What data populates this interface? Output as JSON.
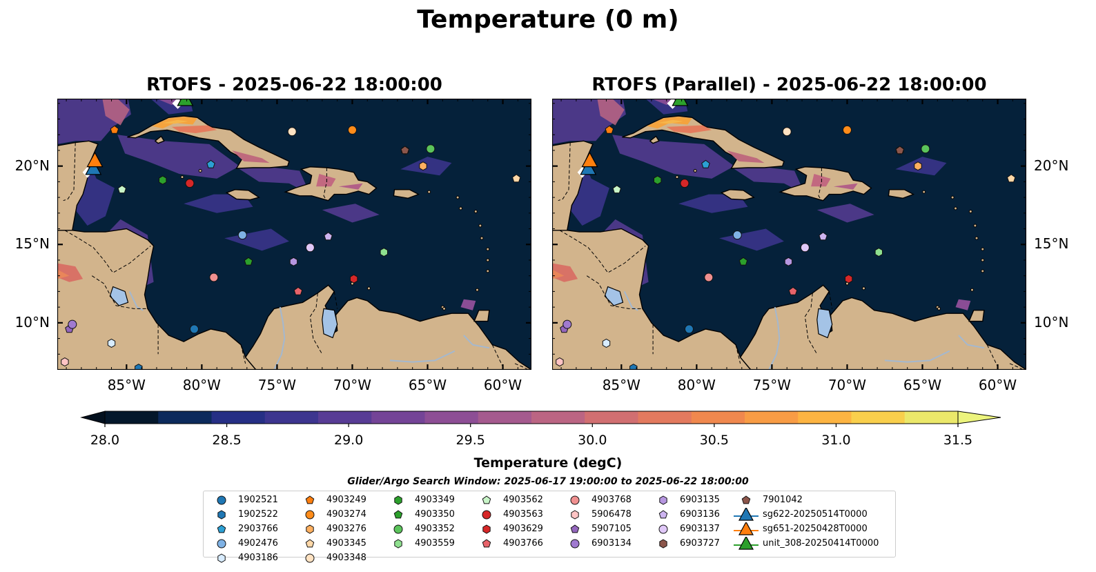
{
  "title": "Temperature (0 m)",
  "panels": [
    {
      "title": "RTOFS - 2025-06-22 18:00:00",
      "lat_labels_side": "left"
    },
    {
      "title": "RTOFS (Parallel) - 2025-06-22 18:00:00",
      "lat_labels_side": "right"
    }
  ],
  "map_extent": {
    "lon_min": -89.6,
    "lon_max": -58.1,
    "lat_min": 7.0,
    "lat_max": 24.3
  },
  "lon_ticks": [
    {
      "value": -85,
      "label": "85°W"
    },
    {
      "value": -80,
      "label": "80°W"
    },
    {
      "value": -75,
      "label": "75°W"
    },
    {
      "value": -70,
      "label": "70°W"
    },
    {
      "value": -65,
      "label": "65°W"
    },
    {
      "value": -60,
      "label": "60°W"
    }
  ],
  "lat_ticks": [
    {
      "value": 10,
      "label": "10°N"
    },
    {
      "value": 15,
      "label": "15°N"
    },
    {
      "value": 20,
      "label": "20°N"
    }
  ],
  "colorbar": {
    "label": "Temperature (degC)",
    "min": 28.0,
    "max": 31.5,
    "step": 0.25,
    "extend": "both",
    "ticks": [
      "28.0",
      "28.5",
      "29.0",
      "29.5",
      "30.0",
      "30.5",
      "31.0",
      "31.5"
    ],
    "colors": [
      "#04172b",
      "#0c2a5c",
      "#262f85",
      "#3d358f",
      "#583c95",
      "#744497",
      "#8d4e95",
      "#a55a8e",
      "#bb6583",
      "#d16f71",
      "#e37a5f",
      "#f0884e",
      "#f89c45",
      "#fdb442",
      "#f9cf4c",
      "#ebe86a"
    ],
    "under_color": "#03101e",
    "over_color": "#ecf47d"
  },
  "search_window": "Glider/Argo Search Window: 2025-06-17 19:00:00 to 2025-06-22 18:00:00",
  "colors": {
    "land": "#d2b48c",
    "ocean_cold": "#05213a",
    "water_body": "#a4c3e6",
    "river": "#a4b8cf"
  },
  "argo_floats": [
    {
      "id": "1902521",
      "marker": "circle",
      "color": "#1f77b4",
      "lon": -80.5,
      "lat": 9.6
    },
    {
      "id": "1902522",
      "marker": "hexagon",
      "color": "#1f77b4",
      "lon": -84.2,
      "lat": 7.1
    },
    {
      "id": "2903766",
      "marker": "pentagon",
      "color": "#2ca0d4",
      "lon": -79.4,
      "lat": 20.1
    },
    {
      "id": "4902476",
      "marker": "circle",
      "color": "#7fb2e5",
      "lon": -77.3,
      "lat": 15.6
    },
    {
      "id": "4903186",
      "marker": "hexagon",
      "color": "#d8ecff",
      "lon": -86.0,
      "lat": 8.7
    },
    {
      "id": "4903249",
      "marker": "pentagon",
      "color": "#ff7f0e",
      "lon": -85.8,
      "lat": 22.3
    },
    {
      "id": "4903274",
      "marker": "circle",
      "color": "#ff8c1a",
      "lon": -70.0,
      "lat": 22.3
    },
    {
      "id": "4903276",
      "marker": "hexagon",
      "color": "#ffb060",
      "lon": -65.3,
      "lat": 20.0
    },
    {
      "id": "4903345",
      "marker": "pentagon",
      "color": "#ffd8a8",
      "lon": -59.1,
      "lat": 19.2
    },
    {
      "id": "4903348",
      "marker": "circle",
      "color": "#ffe2c2",
      "lon": -74.0,
      "lat": 22.2
    },
    {
      "id": "4903349",
      "marker": "hexagon",
      "color": "#2ca02c",
      "lon": -82.6,
      "lat": 19.1
    },
    {
      "id": "4903350",
      "marker": "pentagon",
      "color": "#2ca02c",
      "lon": -76.9,
      "lat": 13.9
    },
    {
      "id": "4903352",
      "marker": "circle",
      "color": "#5bc45b",
      "lon": -64.8,
      "lat": 21.1
    },
    {
      "id": "4903559",
      "marker": "hexagon",
      "color": "#8fe08f",
      "lon": -67.9,
      "lat": 14.5
    },
    {
      "id": "4903562",
      "marker": "pentagon",
      "color": "#c8f5c8",
      "lon": -85.3,
      "lat": 18.5
    },
    {
      "id": "4903563",
      "marker": "circle",
      "color": "#d62728",
      "lon": -80.8,
      "lat": 18.9
    },
    {
      "id": "4903629",
      "marker": "hexagon",
      "color": "#d62728",
      "lon": -69.9,
      "lat": 12.8
    },
    {
      "id": "4903766",
      "marker": "pentagon",
      "color": "#e8636a",
      "lon": -73.6,
      "lat": 12.0
    },
    {
      "id": "4903768",
      "marker": "circle",
      "color": "#f09090",
      "lon": -79.2,
      "lat": 12.9
    },
    {
      "id": "5906478",
      "marker": "hexagon",
      "color": "#ffc4c4",
      "lon": -89.1,
      "lat": 7.5
    },
    {
      "id": "5907105",
      "marker": "pentagon",
      "color": "#9467bd",
      "lon": -88.8,
      "lat": 9.6
    },
    {
      "id": "6903134",
      "marker": "circle",
      "color": "#a07ad0",
      "lon": -88.6,
      "lat": 9.9
    },
    {
      "id": "6903135",
      "marker": "hexagon",
      "color": "#b696e0",
      "lon": -73.9,
      "lat": 13.9
    },
    {
      "id": "6903136",
      "marker": "pentagon",
      "color": "#cdb4f0",
      "lon": -71.6,
      "lat": 15.5
    },
    {
      "id": "6903137",
      "marker": "circle",
      "color": "#e0c8f8",
      "lon": -72.8,
      "lat": 14.8
    },
    {
      "id": "6903727",
      "marker": "hexagon",
      "color": "#8c564b",
      "lon": -66.5,
      "lat": 21.0
    },
    {
      "id": "7901042",
      "marker": "pentagon",
      "color": "#8c564b",
      "lon": -66.5,
      "lat": 21.0
    }
  ],
  "gliders": [
    {
      "id": "sg622-20250514T0000",
      "color": "#1f77b4",
      "lon": -87.2,
      "lat": 19.8
    },
    {
      "id": "sg651-20250428T0000",
      "color": "#ff7f0e",
      "lon": -87.1,
      "lat": 20.3
    },
    {
      "id": "unit_308-20250414T0000",
      "color": "#2ca02c",
      "lon": -81.1,
      "lat": 24.2
    }
  ]
}
